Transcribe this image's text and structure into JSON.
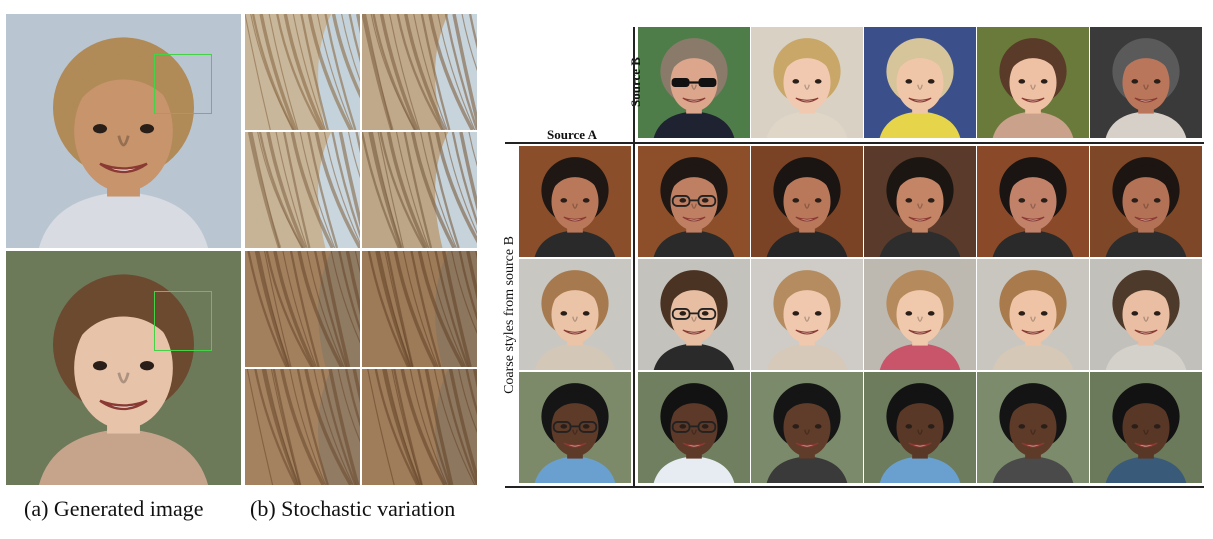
{
  "figure": {
    "caption_a": "(a) Generated image",
    "caption_b": "(b) Stochastic variation",
    "source_a_label": "Source A",
    "source_b_label": "Source B",
    "coarse_label": "Coarse styles from source B"
  },
  "colors": {
    "selection_box": "#46d246",
    "rule": "#222222"
  },
  "panel_a": {
    "images": [
      {
        "name": "generated-man",
        "skin": "#c7946c",
        "hair": "#b08a57",
        "bg": "#b9c6d1",
        "shirt": "#d8dbe2"
      },
      {
        "name": "generated-child",
        "skin": "#e7c3aa",
        "hair": "#6b4a30",
        "bg": "#6d7a5a",
        "shirt": "#c6a48c"
      }
    ]
  },
  "panel_b": {
    "crops": [
      {
        "base": "#c9b79c",
        "strand": "#8a6a45",
        "bg": "#c4d2db"
      },
      {
        "base": "#bfa98a",
        "strand": "#7e6142",
        "bg": "#c7d4dc"
      },
      {
        "base": "#c7b497",
        "strand": "#86684a",
        "bg": "#c9d6de"
      },
      {
        "base": "#bca687",
        "strand": "#7a5d3f",
        "bg": "#c6d3db"
      },
      {
        "base": "#a3805d",
        "strand": "#6a4a2e",
        "bg": "#8f7a62"
      },
      {
        "base": "#9d7a58",
        "strand": "#664629",
        "bg": "#8c765d"
      },
      {
        "base": "#a5825f",
        "strand": "#6d4d31",
        "bg": "#917b63"
      },
      {
        "base": "#9f7c5a",
        "strand": "#67482c",
        "bg": "#8d775f"
      }
    ]
  },
  "grid": {
    "source_b": [
      {
        "skin": "#dba68b",
        "hair": "#8a7a6a",
        "bg": "#4f7d4a",
        "shirt": "#1f2230",
        "glasses": "dark"
      },
      {
        "skin": "#f0c9b0",
        "hair": "#c9a768",
        "bg": "#d9d2c4",
        "shirt": "#e0d6c8",
        "glasses": "none"
      },
      {
        "skin": "#f0c6a8",
        "hair": "#d6c49a",
        "bg": "#3b4f8a",
        "shirt": "#e6d44a",
        "glasses": "none"
      },
      {
        "skin": "#efc1a4",
        "hair": "#5a3a28",
        "bg": "#6a7a3a",
        "shirt": "#caa18a",
        "glasses": "none"
      },
      {
        "skin": "#b9765a",
        "hair": "#5a5a5a",
        "bg": "#3a3a3a",
        "shirt": "#d7d0c8",
        "glasses": "none"
      }
    ],
    "source_a": [
      {
        "skin": "#b9785a",
        "hair": "#1e1714",
        "bg": "#8a4e2a",
        "shirt": "#2b2a2a",
        "glasses": "none"
      },
      {
        "skin": "#ebc3a6",
        "hair": "#a67a4e",
        "bg": "#c9c7c2",
        "shirt": "#d3c7b8",
        "glasses": "none"
      },
      {
        "skin": "#5e3a29",
        "hair": "#151515",
        "bg": "#7c8a6a",
        "shirt": "#6aa0d0",
        "glasses": "thin"
      }
    ],
    "rows": [
      [
        {
          "skin": "#bf7f62",
          "hair": "#1e1714",
          "bg": "#8c4f2a",
          "shirt": "#2a2a2a",
          "glasses": "thin"
        },
        {
          "skin": "#b9785a",
          "hair": "#1a1412",
          "bg": "#7a4326",
          "shirt": "#262626",
          "glasses": "none"
        },
        {
          "skin": "#c48466",
          "hair": "#1c1612",
          "bg": "#5a3a2a",
          "shirt": "#2d2d2d",
          "glasses": "none"
        },
        {
          "skin": "#c2826a",
          "hair": "#1a1412",
          "bg": "#8a4a2a",
          "shirt": "#2a2a2a",
          "glasses": "none"
        },
        {
          "skin": "#b37256",
          "hair": "#1c1512",
          "bg": "#7e4728",
          "shirt": "#2c2c2c",
          "glasses": "none"
        }
      ],
      [
        {
          "skin": "#e8bea2",
          "hair": "#4a3322",
          "bg": "#c4c2bd",
          "shirt": "#2a2a2a",
          "glasses": "thin"
        },
        {
          "skin": "#efc8ae",
          "hair": "#b58c60",
          "bg": "#cfccc7",
          "shirt": "#d6c9b9",
          "glasses": "none"
        },
        {
          "skin": "#f0c8ac",
          "hair": "#b58a5c",
          "bg": "#bdb8b0",
          "shirt": "#c8556a",
          "glasses": "none"
        },
        {
          "skin": "#efc4a6",
          "hair": "#a87a4c",
          "bg": "#c9c6c0",
          "shirt": "#d5c8b6",
          "glasses": "none"
        },
        {
          "skin": "#e9bea2",
          "hair": "#4e3a2a",
          "bg": "#c2c0bb",
          "shirt": "#d4d0ca",
          "glasses": "none"
        }
      ],
      [
        {
          "skin": "#5c3928",
          "hair": "#121212",
          "bg": "#6f7f5f",
          "shirt": "#e6ecf2",
          "glasses": "thin"
        },
        {
          "skin": "#603c2a",
          "hair": "#151515",
          "bg": "#7a8a6a",
          "shirt": "#3a3a3a",
          "glasses": "none"
        },
        {
          "skin": "#5a3827",
          "hair": "#131313",
          "bg": "#6c7c5c",
          "shirt": "#6aa0d0",
          "glasses": "none"
        },
        {
          "skin": "#5e3a29",
          "hair": "#141414",
          "bg": "#7b8b6b",
          "shirt": "#4a4a4a",
          "glasses": "none"
        },
        {
          "skin": "#593726",
          "hair": "#121212",
          "bg": "#6a7a5a",
          "shirt": "#3a5a7a",
          "glasses": "none"
        }
      ]
    ]
  }
}
